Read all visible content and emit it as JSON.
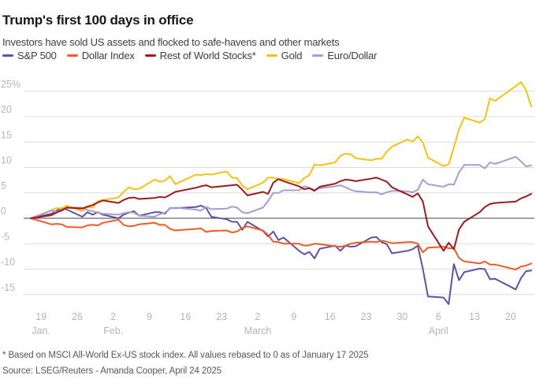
{
  "header": {
    "title": "Trump's first 100 days in office",
    "subtitle": "Investors have sold US assets and flocked to safe-havens and other markets"
  },
  "footnotes": {
    "note": "* Based on MSCI All-World Ex-US stock index. All values rebased to 0 as of January 17 2025",
    "source": "Source: LSEG/Reuters - Amanda Cooper, April 24 2025"
  },
  "colors": {
    "grid": "#dcdcdc",
    "zero_line": "#454545",
    "axis_text": "#b5b5b5"
  },
  "chart_data": {
    "type": "line",
    "title": "Trump's first 100 days in office",
    "x_unit": "days since January 17 2025 (values rebased to 0 at Jan 17 2025)",
    "ylabel": "% change",
    "ylim": [
      -17.5,
      27.5
    ],
    "grid": "horizontal",
    "legend_position": "top",
    "y_ticks": [
      {
        "v": 25,
        "label": "25%"
      },
      {
        "v": 20,
        "label": "20"
      },
      {
        "v": 15,
        "label": "15"
      },
      {
        "v": 10,
        "label": "10"
      },
      {
        "v": 5,
        "label": "5"
      },
      {
        "v": 0,
        "label": "0"
      },
      {
        "v": -5,
        "label": "-5"
      },
      {
        "v": -10,
        "label": "-10"
      },
      {
        "v": -15,
        "label": "-15"
      }
    ],
    "x_ticks": [
      {
        "day": 2,
        "label": "19",
        "month": "Jan."
      },
      {
        "day": 9,
        "label": "26"
      },
      {
        "day": 16,
        "label": "2",
        "month": "Feb."
      },
      {
        "day": 23,
        "label": "9"
      },
      {
        "day": 30,
        "label": "16"
      },
      {
        "day": 37,
        "label": "23"
      },
      {
        "day": 44,
        "label": "2",
        "month": "March"
      },
      {
        "day": 51,
        "label": "9"
      },
      {
        "day": 58,
        "label": "16"
      },
      {
        "day": 65,
        "label": "23"
      },
      {
        "day": 72,
        "label": "30"
      },
      {
        "day": 79,
        "label": "6",
        "month": "April"
      },
      {
        "day": 86,
        "label": "13"
      },
      {
        "day": 93,
        "label": "20"
      }
    ],
    "days": [
      0,
      4,
      5,
      6,
      7,
      10,
      11,
      12,
      13,
      14,
      17,
      18,
      19,
      20,
      21,
      24,
      25,
      26,
      27,
      28,
      32,
      33,
      34,
      35,
      38,
      39,
      40,
      41,
      42,
      45,
      46,
      47,
      48,
      49,
      52,
      53,
      54,
      55,
      56,
      59,
      60,
      61,
      62,
      63,
      66,
      67,
      68,
      69,
      70,
      73,
      74,
      75,
      76,
      77,
      80,
      81,
      82,
      83,
      84,
      87,
      88,
      89,
      90,
      94,
      95,
      96,
      97
    ],
    "draw_order": [
      "sp500",
      "dollar_index",
      "gold",
      "euro_dollar",
      "rest_of_world"
    ],
    "series": [
      {
        "key": "sp500",
        "name": "S&P 500",
        "color": "#6151a6",
        "values": [
          0,
          0.9,
          1.5,
          2.0,
          1.7,
          0.3,
          1.2,
          0.7,
          1.2,
          0.7,
          0.0,
          0.7,
          1.1,
          1.4,
          0.5,
          1.2,
          1.2,
          0.9,
          2.0,
          2.0,
          2.2,
          2.5,
          2.0,
          0.3,
          -0.2,
          -0.7,
          -0.7,
          -2.3,
          -0.7,
          -2.5,
          -3.6,
          -2.6,
          -4.3,
          -3.8,
          -6.4,
          -7.1,
          -6.6,
          -7.9,
          -6.0,
          -5.4,
          -6.4,
          -5.4,
          -5.6,
          -5.5,
          -3.8,
          -3.7,
          -4.7,
          -5.1,
          -6.9,
          -6.4,
          -6.1,
          -5.4,
          -10.0,
          -15.4,
          -15.6,
          -16.9,
          -9.0,
          -12.2,
          -10.6,
          -9.9,
          -10.0,
          -12.0,
          -11.9,
          -14.0,
          -11.8,
          -10.4,
          -10.3
        ]
      },
      {
        "key": "dollar_index",
        "name": "Dollar Index",
        "color": "#ed5c24",
        "values": [
          0,
          -1.2,
          -1.1,
          -1.2,
          -1.7,
          -1.8,
          -1.4,
          -1.3,
          -1.4,
          -0.9,
          -0.3,
          -1.3,
          -1.6,
          -1.5,
          -1.2,
          -0.9,
          -1.3,
          -1.3,
          -2.1,
          -2.4,
          -2.1,
          -2.0,
          -2.7,
          -2.5,
          -2.4,
          -2.8,
          -2.6,
          -1.9,
          -1.6,
          -2.4,
          -3.3,
          -4.6,
          -4.7,
          -5.0,
          -5.0,
          -5.4,
          -5.3,
          -5.0,
          -5.1,
          -5.5,
          -5.6,
          -5.4,
          -5.0,
          -4.8,
          -4.6,
          -4.7,
          -4.4,
          -4.6,
          -4.9,
          -4.7,
          -4.7,
          -5.0,
          -6.7,
          -5.8,
          -5.6,
          -5.9,
          -5.9,
          -7.8,
          -8.5,
          -8.9,
          -8.5,
          -9.1,
          -9.1,
          -10.1,
          -9.5,
          -9.3,
          -8.9
        ]
      },
      {
        "key": "rest_of_world",
        "name": "Rest of World Stocks*",
        "color": "#9e1a1d",
        "values": [
          0,
          0.6,
          1.1,
          1.6,
          2.1,
          1.9,
          2.3,
          2.6,
          3.1,
          3.5,
          3.0,
          3.6,
          4.0,
          4.1,
          3.8,
          4.0,
          4.2,
          4.1,
          4.6,
          5.2,
          6.0,
          6.3,
          6.5,
          6.1,
          6.4,
          6.5,
          6.6,
          5.6,
          4.5,
          5.2,
          4.8,
          7.0,
          7.7,
          7.3,
          6.3,
          5.7,
          5.9,
          5.4,
          6.2,
          6.8,
          7.3,
          7.6,
          7.5,
          7.3,
          7.8,
          8.0,
          7.6,
          7.2,
          6.1,
          4.7,
          4.2,
          4.9,
          3.3,
          -1.6,
          -6.4,
          -4.8,
          -6.1,
          -2.2,
          -0.7,
          1.2,
          2.2,
          2.8,
          3.0,
          3.3,
          3.9,
          4.3,
          4.8
        ]
      },
      {
        "key": "gold",
        "name": "Gold",
        "color": "#f5c211",
        "values": [
          0,
          1.6,
          2.0,
          1.9,
          2.5,
          1.4,
          2.2,
          2.1,
          3.4,
          3.6,
          4.1,
          5.2,
          6.1,
          5.7,
          5.8,
          7.6,
          7.2,
          7.4,
          8.3,
          6.7,
          8.6,
          8.5,
          8.7,
          8.6,
          9.2,
          8.0,
          7.9,
          6.4,
          5.7,
          7.0,
          8.0,
          8.0,
          7.7,
          7.7,
          6.9,
          7.9,
          8.5,
          10.6,
          10.4,
          11.0,
          12.3,
          12.7,
          12.6,
          11.8,
          11.4,
          11.7,
          11.7,
          13.1,
          14.1,
          15.5,
          15.1,
          16.1,
          14.9,
          11.9,
          10.3,
          10.6,
          14.0,
          17.5,
          19.8,
          18.8,
          19.5,
          23.6,
          23.1,
          26.0,
          26.8,
          25.2,
          22.0
        ]
      },
      {
        "key": "euro_dollar",
        "name": "Euro/Dollar",
        "color": "#a89cd3",
        "values": [
          0,
          1.5,
          1.3,
          1.4,
          2.1,
          2.1,
          1.6,
          1.4,
          1.1,
          0.9,
          0.7,
          1.0,
          1.2,
          1.1,
          0.5,
          0.3,
          0.8,
          1.1,
          1.9,
          2.1,
          1.7,
          1.5,
          2.2,
          1.8,
          1.9,
          2.3,
          2.1,
          1.2,
          1.0,
          2.1,
          3.4,
          5.0,
          5.0,
          5.5,
          5.5,
          6.3,
          6.0,
          5.6,
          5.9,
          6.3,
          6.5,
          6.1,
          5.6,
          5.3,
          5.1,
          5.1,
          4.7,
          5.1,
          5.4,
          5.3,
          5.1,
          5.6,
          7.6,
          6.7,
          6.2,
          6.7,
          6.6,
          9.0,
          10.5,
          10.5,
          9.8,
          11.0,
          10.7,
          12.1,
          11.2,
          10.2,
          10.4
        ]
      }
    ]
  }
}
